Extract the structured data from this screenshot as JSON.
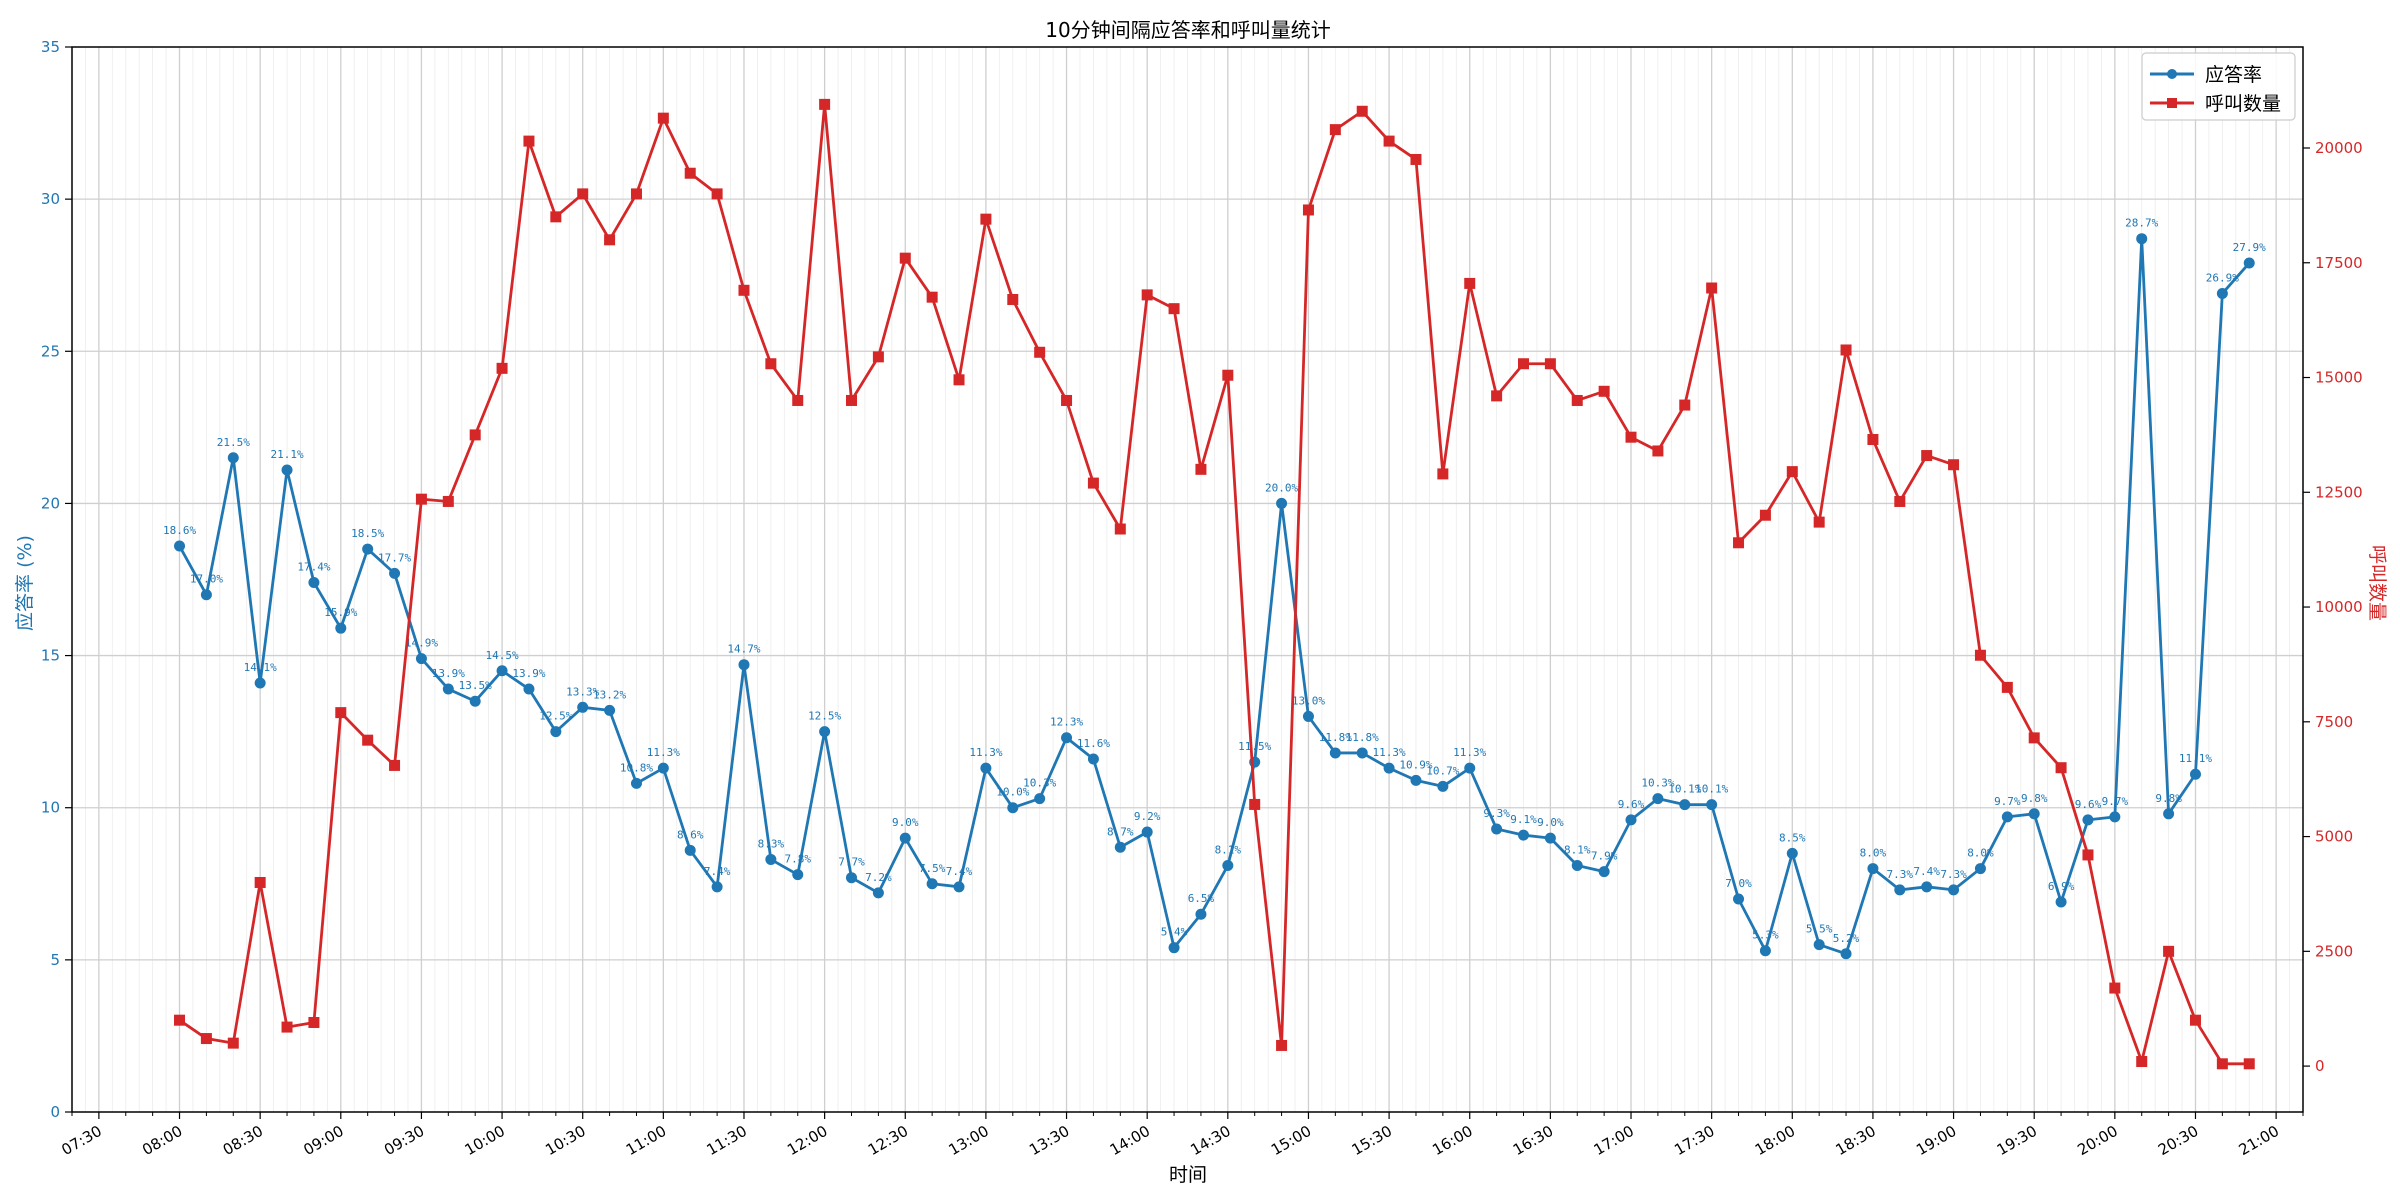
{
  "chart_data": {
    "type": "line",
    "title": "10分钟间隔应答率和呼叫量统计",
    "xlabel": "时间",
    "ylabel_left": "应答率 (%)",
    "ylabel_right": "呼叫数量",
    "ylim_left": [
      0,
      35
    ],
    "ylim_right": [
      -1000,
      22200
    ],
    "xlim": [
      "07:20",
      "21:10"
    ],
    "x_ticks": [
      "07:30",
      "08:00",
      "08:30",
      "09:00",
      "09:30",
      "10:00",
      "10:30",
      "11:00",
      "11:30",
      "12:00",
      "12:30",
      "13:00",
      "13:30",
      "14:00",
      "14:30",
      "15:00",
      "15:30",
      "16:00",
      "16:30",
      "17:00",
      "17:30",
      "18:00",
      "18:30",
      "19:00",
      "19:30",
      "20:00",
      "20:30",
      "21:00"
    ],
    "y_ticks_left": [
      0,
      5,
      10,
      15,
      20,
      25,
      30,
      35
    ],
    "y_ticks_right": [
      0,
      2500,
      5000,
      7500,
      10000,
      12500,
      15000,
      17500,
      20000
    ],
    "grid": true,
    "legend_position": "top-right",
    "legend": [
      "应答率",
      "呼叫数量"
    ],
    "colors": {
      "answer_rate": "#1f77b4",
      "calls": "#d62728"
    },
    "x": [
      "08:00",
      "08:10",
      "08:20",
      "08:30",
      "08:40",
      "08:50",
      "09:00",
      "09:10",
      "09:20",
      "09:30",
      "09:40",
      "09:50",
      "10:00",
      "10:10",
      "10:20",
      "10:30",
      "10:40",
      "10:50",
      "11:00",
      "11:10",
      "11:20",
      "11:30",
      "11:40",
      "11:50",
      "12:00",
      "12:10",
      "12:20",
      "12:30",
      "12:40",
      "12:50",
      "13:00",
      "13:10",
      "13:20",
      "13:30",
      "13:40",
      "13:50",
      "14:00",
      "14:10",
      "14:20",
      "14:30",
      "14:40",
      "14:50",
      "15:00",
      "15:10",
      "15:20",
      "15:30",
      "15:40",
      "15:50",
      "16:00",
      "16:10",
      "16:20",
      "16:30",
      "16:40",
      "16:50",
      "17:00",
      "17:10",
      "17:20",
      "17:30",
      "17:40",
      "17:50",
      "18:00",
      "18:10",
      "18:20",
      "18:30",
      "18:40",
      "18:50",
      "19:00",
      "19:10",
      "19:20",
      "19:30",
      "19:40",
      "19:50",
      "20:00",
      "20:10",
      "20:20",
      "20:30",
      "20:40",
      "20:50"
    ],
    "series": [
      {
        "name": "应答率",
        "axis": "left",
        "marker": "circle",
        "values": [
          18.6,
          17.0,
          21.5,
          14.1,
          21.1,
          17.4,
          15.9,
          18.5,
          17.7,
          14.9,
          13.9,
          13.5,
          14.5,
          13.9,
          12.5,
          13.3,
          13.2,
          10.8,
          11.3,
          8.6,
          7.4,
          14.7,
          8.3,
          7.8,
          12.5,
          7.7,
          7.2,
          9.0,
          7.5,
          7.4,
          11.3,
          10.0,
          10.3,
          12.3,
          11.6,
          8.7,
          9.2,
          5.4,
          6.5,
          8.1,
          11.5,
          20.0,
          13.0,
          11.8,
          11.8,
          11.3,
          10.9,
          10.7,
          11.3,
          9.3,
          9.1,
          9.0,
          8.1,
          7.9,
          9.6,
          10.3,
          10.1,
          10.1,
          7.0,
          5.3,
          8.5,
          5.5,
          5.2,
          8.0,
          7.3,
          7.4,
          7.3,
          8.0,
          9.7,
          9.8,
          6.9,
          9.6,
          9.7,
          28.7,
          9.8,
          11.1,
          26.9,
          27.9
        ],
        "labels": [
          "18.6%",
          "17.0%",
          "21.5%",
          "14.1%",
          "21.1%",
          "17.4%",
          "15.9%",
          "18.5%",
          "17.7%",
          "14.9%",
          "13.9%",
          "13.5%",
          "14.5%",
          "13.9%",
          "12.5%",
          "13.3%",
          "13.2%",
          "10.8%",
          "11.3%",
          "8.6%",
          "7.4%",
          "14.7%",
          "8.3%",
          "7.8%",
          "12.5%",
          "7.7%",
          "7.2%",
          "9.0%",
          "7.5%",
          "7.4%",
          "11.3%",
          "10.0%",
          "10.3%",
          "12.3%",
          "11.6%",
          "8.7%",
          "9.2%",
          "5.4%",
          "6.5%",
          "8.1%",
          "11.5%",
          "20.0%",
          "13.0%",
          "11.8%",
          "11.8%",
          "11.3%",
          "10.9%",
          "10.7%",
          "11.3%",
          "9.3%",
          "9.1%",
          "9.0%",
          "8.1%",
          "7.9%",
          "9.6%",
          "10.3%",
          "10.1%",
          "10.1%",
          "7.0%",
          "5.3%",
          "8.5%",
          "5.5%",
          "5.2%",
          "8.0%",
          "7.3%",
          "7.4%",
          "7.3%",
          "8.0%",
          "9.7%",
          "9.8%",
          "6.9%",
          "9.6%",
          "9.7%",
          "28.7%",
          "9.8%",
          "11.1%",
          "26.9%",
          "27.9%"
        ]
      },
      {
        "name": "呼叫数量",
        "axis": "right",
        "marker": "square",
        "values": [
          1000,
          600,
          500,
          4000,
          850,
          950,
          7700,
          7100,
          6550,
          12350,
          12300,
          13750,
          15200,
          20150,
          18500,
          19000,
          18000,
          19000,
          20650,
          19450,
          19000,
          16900,
          15300,
          14500,
          20950,
          14500,
          15450,
          17600,
          16750,
          14950,
          18450,
          16700,
          15550,
          14500,
          12700,
          11700,
          16800,
          16500,
          13000,
          15050,
          5700,
          450,
          18650,
          20400,
          20800,
          20150,
          19750,
          12900,
          17050,
          14600,
          15300,
          15300,
          14500,
          14700,
          13700,
          13400,
          14400,
          16950,
          11400,
          12000,
          12950,
          11850,
          15600,
          13650,
          12300,
          13300,
          13100,
          8950,
          8250,
          7150,
          6500,
          4600,
          1700,
          100,
          2500,
          1000,
          50,
          50
        ]
      }
    ]
  }
}
